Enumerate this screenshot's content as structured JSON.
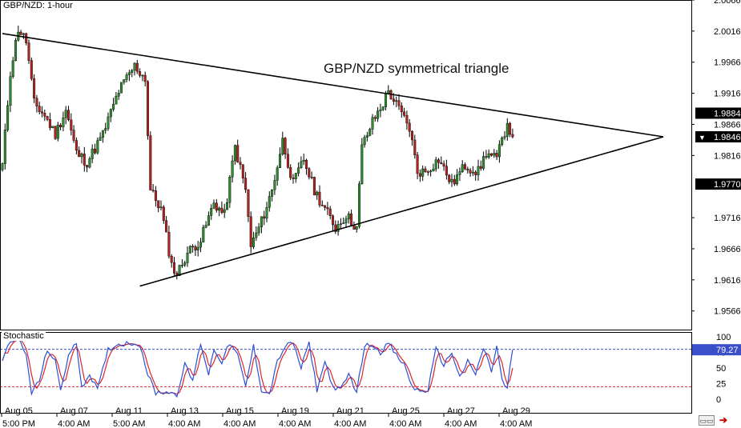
{
  "symbol_label": "GBP/NZD: 1-hour",
  "indicator_label": "Stochastic",
  "annotation": "GBP/NZD symmetrical triangle",
  "navigation": {
    "scroll_icon": "scroll-to-end-icon",
    "close_icon": "close-icon"
  },
  "colors": {
    "up_candle": "#2e8b2e",
    "down_candle": "#b22222",
    "stoch_k": "#d9262b",
    "stoch_d": "#2d4fd6",
    "overbought_line": "#3a4fc9",
    "oversold_line": "#d9262b"
  },
  "chart_data": [
    {
      "type": "candlestick",
      "y_range": [
        1.9536,
        2.0066
      ],
      "y_ticks": [
        "2.0066",
        "2.0016",
        "1.9966",
        "1.9916",
        "1.9866",
        "1.9816",
        "1.9716",
        "1.9666",
        "1.9616",
        "1.9566"
      ],
      "price_tags": [
        {
          "label": "1.9884",
          "value": 1.9884,
          "style": "black"
        },
        {
          "label": "1.9846",
          "value": 1.9846,
          "style": "current"
        },
        {
          "label": "1.9770",
          "value": 1.977,
          "style": "black"
        }
      ],
      "x_labels": [
        "Aug 05",
        "Aug 07",
        "Aug 11",
        "Aug 13",
        "Aug 15",
        "Aug 19",
        "Aug 21",
        "Aug 25",
        "Aug 27",
        "Aug 29"
      ],
      "x_times": [
        "5:00 PM",
        "4:00 AM",
        "5:00 AM",
        "4:00 AM",
        "4:00 AM",
        "4:00 AM",
        "4:00 AM",
        "4:00 AM",
        "4:00 AM",
        "4:00 AM"
      ],
      "path_knots": [
        [
          0,
          1.98
        ],
        [
          3,
          1.995
        ],
        [
          6,
          2.002
        ],
        [
          9,
          2.0
        ],
        [
          12,
          1.99
        ],
        [
          16,
          1.988
        ],
        [
          20,
          1.985
        ],
        [
          24,
          1.989
        ],
        [
          28,
          1.982
        ],
        [
          32,
          1.9805
        ],
        [
          38,
          1.985
        ],
        [
          44,
          1.992
        ],
        [
          50,
          1.996
        ],
        [
          54,
          1.994
        ],
        [
          56,
          1.976
        ],
        [
          60,
          1.973
        ],
        [
          64,
          1.964
        ],
        [
          66,
          1.9625
        ],
        [
          70,
          1.966
        ],
        [
          75,
          1.968
        ],
        [
          80,
          1.974
        ],
        [
          84,
          1.972
        ],
        [
          88,
          1.983
        ],
        [
          92,
          1.976
        ],
        [
          94,
          1.967
        ],
        [
          98,
          1.971
        ],
        [
          102,
          1.976
        ],
        [
          106,
          1.984
        ],
        [
          110,
          1.977
        ],
        [
          114,
          1.981
        ],
        [
          118,
          1.976
        ],
        [
          122,
          1.973
        ],
        [
          126,
          1.97
        ],
        [
          130,
          1.972
        ],
        [
          134,
          1.97
        ],
        [
          136,
          1.983
        ],
        [
          140,
          1.987
        ],
        [
          144,
          1.99
        ],
        [
          146,
          1.992
        ],
        [
          150,
          1.989
        ],
        [
          154,
          1.986
        ],
        [
          157,
          1.979
        ],
        [
          160,
          1.979
        ],
        [
          165,
          1.981
        ],
        [
          170,
          1.977
        ],
        [
          175,
          1.98
        ],
        [
          180,
          1.979
        ],
        [
          183,
          1.982
        ],
        [
          187,
          1.981
        ],
        [
          191,
          1.987
        ],
        [
          193,
          1.9846
        ]
      ],
      "trendlines": [
        {
          "name": "upper",
          "from": [
            0,
            2.0012
          ],
          "to": [
            250,
            1.9846
          ]
        },
        {
          "name": "lower",
          "from": [
            52,
            1.9606
          ],
          "to": [
            250,
            1.9846
          ]
        }
      ]
    },
    {
      "type": "line",
      "title": "Stochastic",
      "y_range": [
        0,
        100
      ],
      "y_ticks": [
        "100",
        "75",
        "50",
        "25",
        "0"
      ],
      "levels": [
        80,
        20
      ],
      "current_value_label": "79.27",
      "current_value": 79.27,
      "k_knots": [
        [
          0,
          60
        ],
        [
          3,
          95
        ],
        [
          6,
          98
        ],
        [
          9,
          70
        ],
        [
          11,
          10
        ],
        [
          14,
          30
        ],
        [
          17,
          80
        ],
        [
          20,
          60
        ],
        [
          22,
          15
        ],
        [
          25,
          70
        ],
        [
          28,
          90
        ],
        [
          30,
          20
        ],
        [
          33,
          40
        ],
        [
          36,
          15
        ],
        [
          40,
          80
        ],
        [
          44,
          88
        ],
        [
          48,
          90
        ],
        [
          52,
          88
        ],
        [
          55,
          40
        ],
        [
          58,
          10
        ],
        [
          62,
          12
        ],
        [
          66,
          8
        ],
        [
          69,
          55
        ],
        [
          72,
          30
        ],
        [
          75,
          90
        ],
        [
          78,
          40
        ],
        [
          80,
          80
        ],
        [
          83,
          60
        ],
        [
          86,
          90
        ],
        [
          89,
          70
        ],
        [
          92,
          20
        ],
        [
          95,
          85
        ],
        [
          98,
          15
        ],
        [
          101,
          8
        ],
        [
          104,
          60
        ],
        [
          107,
          85
        ],
        [
          110,
          90
        ],
        [
          113,
          50
        ],
        [
          116,
          90
        ],
        [
          119,
          15
        ],
        [
          122,
          60
        ],
        [
          125,
          20
        ],
        [
          128,
          15
        ],
        [
          131,
          40
        ],
        [
          134,
          12
        ],
        [
          137,
          85
        ],
        [
          140,
          88
        ],
        [
          143,
          75
        ],
        [
          146,
          90
        ],
        [
          149,
          70
        ],
        [
          152,
          55
        ],
        [
          155,
          20
        ],
        [
          158,
          12
        ],
        [
          161,
          15
        ],
        [
          164,
          80
        ],
        [
          167,
          55
        ],
        [
          170,
          75
        ],
        [
          173,
          35
        ],
        [
          176,
          60
        ],
        [
          179,
          40
        ],
        [
          182,
          82
        ],
        [
          185,
          45
        ],
        [
          187,
          85
        ],
        [
          189,
          30
        ],
        [
          191,
          15
        ],
        [
          193,
          90
        ],
        [
          194,
          79
        ]
      ]
    }
  ]
}
